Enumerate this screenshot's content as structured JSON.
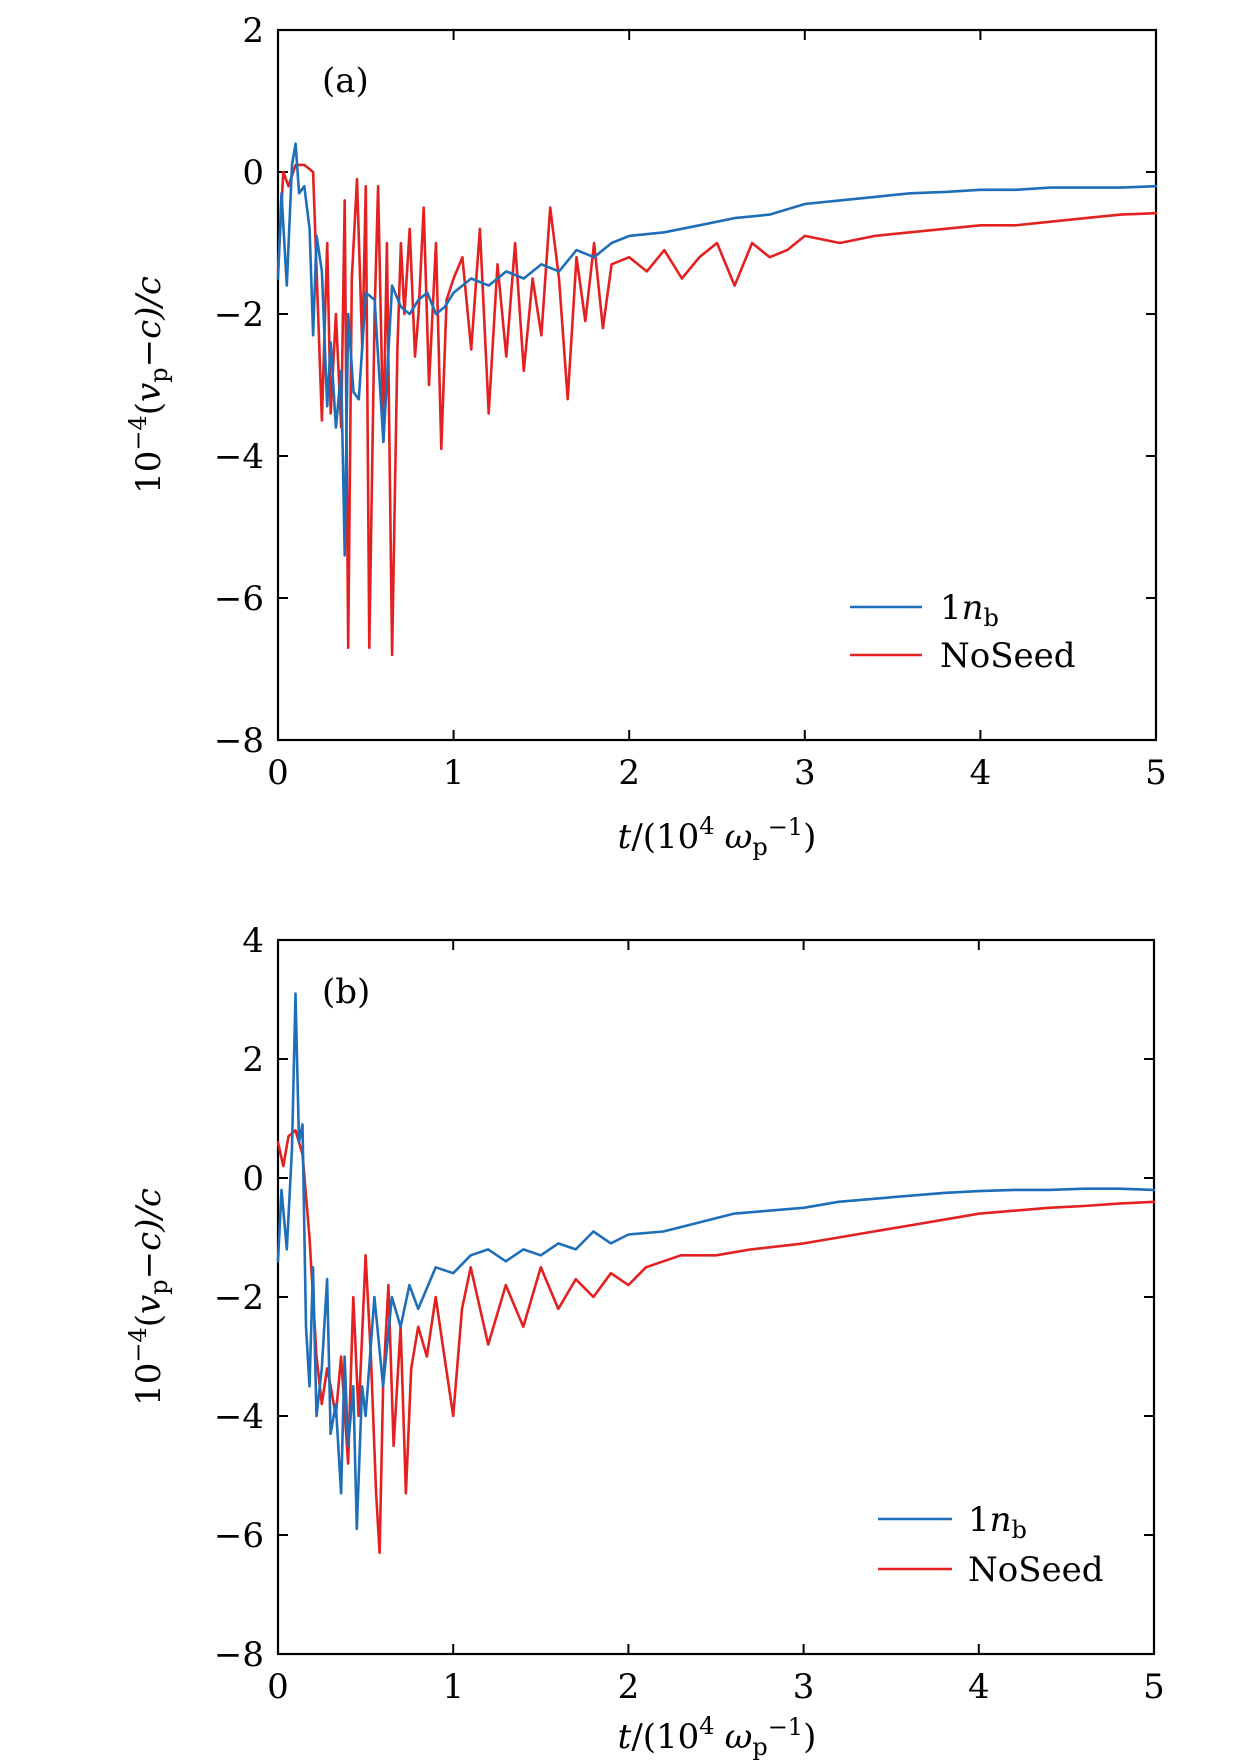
{
  "colors": {
    "blue": "#1f6fb8",
    "red": "#e32121"
  },
  "axis_labels": {
    "x_main": "t",
    "x_rest": "/(10",
    "x_exp": "4",
    "x_omega": "ω",
    "x_sub": "p",
    "x_minus1": "−1",
    "x_close": ")",
    "y_prefix": "10",
    "y_exp": "−4",
    "y_open": "(",
    "y_v": "v",
    "y_sub": "p",
    "y_minus_c": "−c)/c"
  },
  "legend": {
    "blue_main": "1",
    "blue_n": "n",
    "blue_sub": "b",
    "red_label": "NoSeed"
  },
  "chart_data": [
    {
      "type": "line",
      "panel_label": "(a)",
      "xlim": [
        0,
        5
      ],
      "ylim": [
        -8,
        2
      ],
      "xticks": [
        "0",
        "1",
        "2",
        "3",
        "4",
        "5"
      ],
      "yticks": [
        "2",
        "0",
        "−2",
        "−4",
        "−6",
        "−8"
      ],
      "legend_position": "lower-right",
      "series": [
        {
          "name": "1nb",
          "color": "blue",
          "x": [
            0,
            0.02,
            0.05,
            0.08,
            0.1,
            0.12,
            0.15,
            0.18,
            0.2,
            0.22,
            0.25,
            0.28,
            0.3,
            0.33,
            0.36,
            0.38,
            0.4,
            0.43,
            0.46,
            0.5,
            0.55,
            0.6,
            0.65,
            0.7,
            0.75,
            0.8,
            0.85,
            0.9,
            0.95,
            1.0,
            1.1,
            1.2,
            1.3,
            1.4,
            1.5,
            1.6,
            1.7,
            1.8,
            1.9,
            2.0,
            2.2,
            2.4,
            2.6,
            2.8,
            3.0,
            3.2,
            3.4,
            3.6,
            3.8,
            4.0,
            4.2,
            4.4,
            4.6,
            4.8,
            5.0
          ],
          "values": [
            -1.5,
            -0.3,
            -1.6,
            0.1,
            0.4,
            -0.3,
            -0.2,
            -0.8,
            -2.3,
            -0.9,
            -1.4,
            -3.3,
            -2.4,
            -3.6,
            -2.8,
            -5.4,
            -2.0,
            -3.1,
            -3.2,
            -1.7,
            -1.8,
            -3.8,
            -1.6,
            -1.9,
            -2.0,
            -1.8,
            -1.7,
            -2.0,
            -1.9,
            -1.7,
            -1.5,
            -1.6,
            -1.4,
            -1.5,
            -1.3,
            -1.4,
            -1.1,
            -1.2,
            -1.0,
            -0.9,
            -0.85,
            -0.75,
            -0.65,
            -0.6,
            -0.45,
            -0.4,
            -0.35,
            -0.3,
            -0.28,
            -0.25,
            -0.25,
            -0.22,
            -0.22,
            -0.22,
            -0.2
          ]
        },
        {
          "name": "NoSeed",
          "color": "red",
          "x": [
            0,
            0.03,
            0.06,
            0.1,
            0.15,
            0.2,
            0.25,
            0.28,
            0.3,
            0.33,
            0.36,
            0.38,
            0.4,
            0.42,
            0.45,
            0.48,
            0.5,
            0.52,
            0.55,
            0.57,
            0.6,
            0.62,
            0.65,
            0.68,
            0.7,
            0.72,
            0.75,
            0.78,
            0.8,
            0.83,
            0.86,
            0.9,
            0.93,
            0.96,
            1.0,
            1.05,
            1.1,
            1.15,
            1.2,
            1.25,
            1.3,
            1.35,
            1.4,
            1.45,
            1.5,
            1.55,
            1.6,
            1.65,
            1.7,
            1.75,
            1.8,
            1.85,
            1.9,
            2.0,
            2.1,
            2.2,
            2.3,
            2.4,
            2.5,
            2.6,
            2.7,
            2.8,
            2.9,
            3.0,
            3.2,
            3.4,
            3.6,
            3.8,
            4.0,
            4.2,
            4.4,
            4.6,
            4.8,
            5.0
          ],
          "values": [
            -1.4,
            0.0,
            -0.2,
            0.1,
            0.1,
            0.0,
            -3.5,
            -1.0,
            -3.4,
            -2.0,
            -3.6,
            -0.4,
            -6.7,
            -1.5,
            -0.1,
            -2.5,
            -0.2,
            -6.7,
            -2.0,
            -0.2,
            -3.8,
            -1.0,
            -6.8,
            -2.5,
            -1.0,
            -2.0,
            -0.8,
            -2.6,
            -2.0,
            -0.5,
            -3.0,
            -1.0,
            -3.9,
            -1.8,
            -1.5,
            -1.2,
            -2.5,
            -0.8,
            -3.4,
            -1.3,
            -2.6,
            -1.0,
            -2.8,
            -1.5,
            -2.3,
            -0.5,
            -1.5,
            -3.2,
            -1.2,
            -2.1,
            -1.0,
            -2.2,
            -1.3,
            -1.2,
            -1.4,
            -1.1,
            -1.5,
            -1.2,
            -1.0,
            -1.6,
            -1.0,
            -1.2,
            -1.1,
            -0.9,
            -1.0,
            -0.9,
            -0.85,
            -0.8,
            -0.75,
            -0.75,
            -0.7,
            -0.65,
            -0.6,
            -0.58
          ]
        }
      ]
    },
    {
      "type": "line",
      "panel_label": "(b)",
      "xlim": [
        0,
        5
      ],
      "ylim": [
        -8,
        4
      ],
      "xticks": [
        "0",
        "1",
        "2",
        "3",
        "4",
        "5"
      ],
      "yticks": [
        "4",
        "2",
        "0",
        "−2",
        "−4",
        "−6",
        "−8"
      ],
      "legend_position": "lower-right",
      "series": [
        {
          "name": "1nb",
          "color": "blue",
          "x": [
            0,
            0.02,
            0.05,
            0.08,
            0.1,
            0.12,
            0.14,
            0.16,
            0.18,
            0.2,
            0.22,
            0.25,
            0.28,
            0.3,
            0.33,
            0.36,
            0.38,
            0.4,
            0.43,
            0.45,
            0.48,
            0.5,
            0.55,
            0.6,
            0.65,
            0.7,
            0.75,
            0.8,
            0.9,
            1.0,
            1.1,
            1.2,
            1.3,
            1.4,
            1.5,
            1.6,
            1.7,
            1.8,
            1.9,
            2.0,
            2.2,
            2.4,
            2.6,
            2.8,
            3.0,
            3.2,
            3.4,
            3.6,
            3.8,
            4.0,
            4.2,
            4.4,
            4.6,
            4.8,
            5.0
          ],
          "values": [
            -1.4,
            -0.2,
            -1.2,
            0.5,
            3.1,
            0.6,
            0.9,
            -2.5,
            -3.5,
            -1.5,
            -4.0,
            -3.2,
            -1.7,
            -4.3,
            -3.8,
            -5.3,
            -3.0,
            -4.5,
            -3.5,
            -5.9,
            -3.5,
            -4.0,
            -2.0,
            -3.5,
            -2.0,
            -2.5,
            -1.8,
            -2.2,
            -1.5,
            -1.6,
            -1.3,
            -1.2,
            -1.4,
            -1.2,
            -1.3,
            -1.1,
            -1.2,
            -0.9,
            -1.1,
            -0.95,
            -0.9,
            -0.75,
            -0.6,
            -0.55,
            -0.5,
            -0.4,
            -0.35,
            -0.3,
            -0.25,
            -0.22,
            -0.2,
            -0.2,
            -0.18,
            -0.18,
            -0.2
          ]
        },
        {
          "name": "NoSeed",
          "color": "red",
          "x": [
            0,
            0.03,
            0.06,
            0.1,
            0.14,
            0.18,
            0.22,
            0.25,
            0.28,
            0.3,
            0.33,
            0.36,
            0.4,
            0.43,
            0.46,
            0.5,
            0.53,
            0.56,
            0.58,
            0.6,
            0.63,
            0.66,
            0.7,
            0.73,
            0.76,
            0.8,
            0.85,
            0.9,
            0.95,
            1.0,
            1.05,
            1.1,
            1.2,
            1.3,
            1.4,
            1.5,
            1.6,
            1.7,
            1.8,
            1.9,
            2.0,
            2.1,
            2.2,
            2.3,
            2.4,
            2.5,
            2.7,
            3.0,
            3.2,
            3.4,
            3.6,
            3.8,
            4.0,
            4.2,
            4.4,
            4.6,
            4.8,
            5.0
          ],
          "values": [
            0.6,
            0.2,
            0.7,
            0.8,
            0.4,
            -1.0,
            -3.0,
            -3.8,
            -3.2,
            -3.5,
            -4.0,
            -3.0,
            -4.8,
            -2.0,
            -4.0,
            -1.3,
            -3.0,
            -5.3,
            -6.3,
            -3.5,
            -1.8,
            -4.5,
            -2.5,
            -5.3,
            -3.2,
            -2.5,
            -3.0,
            -2.0,
            -3.0,
            -4.0,
            -2.2,
            -1.5,
            -2.8,
            -1.8,
            -2.5,
            -1.5,
            -2.2,
            -1.7,
            -2.0,
            -1.6,
            -1.8,
            -1.5,
            -1.4,
            -1.3,
            -1.3,
            -1.3,
            -1.2,
            -1.1,
            -1.0,
            -0.9,
            -0.8,
            -0.7,
            -0.6,
            -0.55,
            -0.5,
            -0.47,
            -0.43,
            -0.4
          ]
        }
      ]
    }
  ]
}
